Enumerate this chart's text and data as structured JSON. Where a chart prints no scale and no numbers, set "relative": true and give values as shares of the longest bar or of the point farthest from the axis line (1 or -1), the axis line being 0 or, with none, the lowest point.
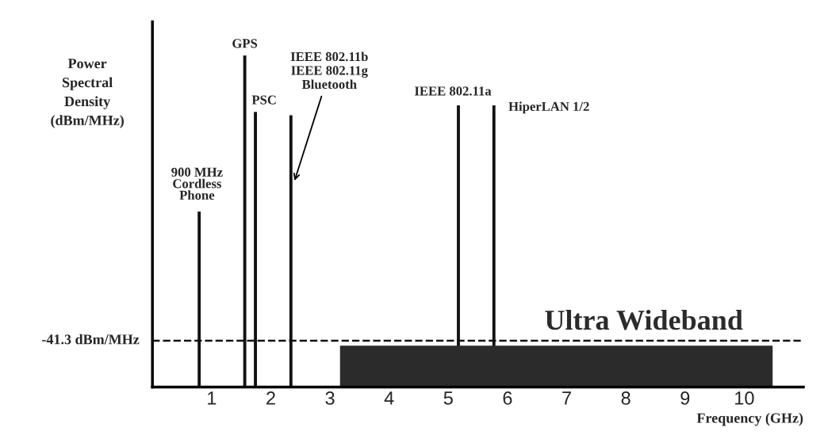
{
  "chart_data": {
    "type": "bar",
    "relative": true,
    "xlabel": "Frequency (GHz)",
    "ylabel": "Power\nSpectral\nDensity\n(dBm/MHz)",
    "xlim": [
      0,
      11
    ],
    "xticks": [
      1,
      2,
      3,
      4,
      5,
      6,
      7,
      8,
      9,
      10
    ],
    "grid": false,
    "series": [
      {
        "color": "#111111",
        "x": [
          0.79,
          1.56,
          1.74,
          2.34,
          5.17,
          5.77
        ],
        "values": [
          0.53,
          1.0,
          0.83,
          0.82,
          0.85,
          0.85
        ]
      },
      {
        "type": "area",
        "name": "Ultra Wideband",
        "color": "#2b2b2b",
        "x": [
          3.17,
          10.48
        ],
        "values": [
          0.125,
          0.125
        ]
      }
    ],
    "ref_lines": [
      {
        "axis": "y",
        "value": 0.14,
        "label": "-41.3 dBm/MHz",
        "line_style": "dashed",
        "color": "#111111"
      }
    ],
    "annotations": [
      {
        "text": "900 MHz\nCordless\nPhone",
        "x": 0.79,
        "y": 0.53
      },
      {
        "text": "GPS",
        "x": 1.56,
        "y": 1.0
      },
      {
        "text": "PSC",
        "x": 1.74,
        "y": 0.83
      },
      {
        "text": "IEEE 802.11b\nIEEE 802.11g\nBluetooth",
        "x": 2.34,
        "y": 0.82
      },
      {
        "text": "IEEE 802.11a",
        "x": 5.17,
        "y": 0.85
      },
      {
        "text": "HiperLAN 1/2",
        "x": 5.77,
        "y": 0.85
      }
    ]
  }
}
